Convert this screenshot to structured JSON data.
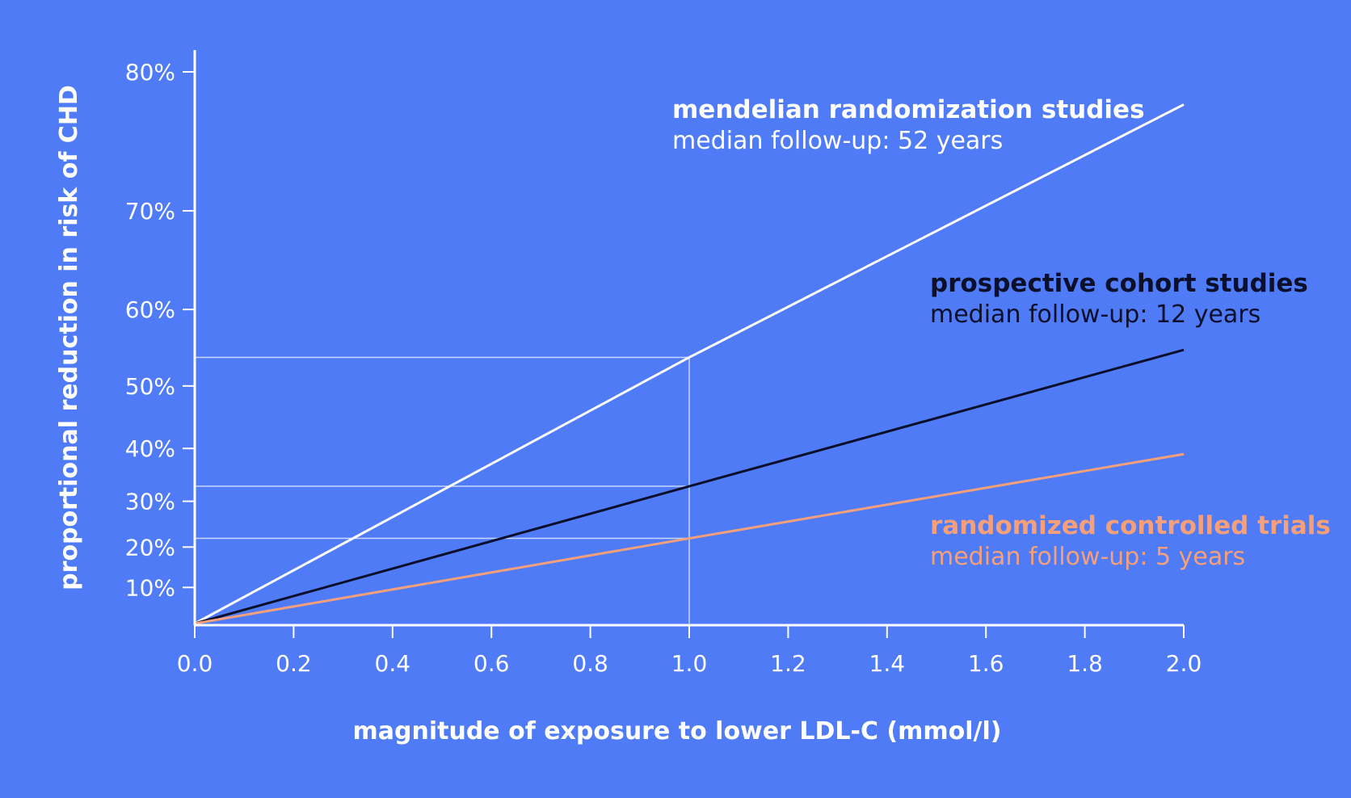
{
  "chart_data": {
    "type": "line",
    "title": "",
    "xlabel": "magnitude of exposure to lower LDL-C (mmol/l)",
    "ylabel": "proportional reduction in risk of CHD",
    "xlim": [
      0,
      2
    ],
    "y_scale": "log-risk (proportional reduction axis, non-linear)",
    "x_ticks": [
      "0.0",
      "0.2",
      "0.4",
      "0.6",
      "0.8",
      "1.0",
      "1.2",
      "1.4",
      "1.6",
      "1.8",
      "2.0"
    ],
    "y_ticks": [
      "10%",
      "20%",
      "30%",
      "40%",
      "50%",
      "60%",
      "70%",
      "80%"
    ],
    "grid": false,
    "reference_lines": {
      "x": 1.0,
      "y": [
        22,
        33,
        54
      ]
    },
    "series": [
      {
        "name": "mendelian randomization studies",
        "subtitle": "median follow-up: 52 years",
        "color": "#ffffff",
        "x": [
          0,
          1.0,
          2.0
        ],
        "y": [
          0,
          54,
          78
        ]
      },
      {
        "name": "prospective cohort studies",
        "subtitle": "median follow-up: 12 years",
        "color": "#0b0f2a",
        "x": [
          0,
          1.0,
          2.0
        ],
        "y": [
          0,
          33,
          55
        ]
      },
      {
        "name": "randomized controlled trials",
        "subtitle": "median follow-up: 5 years",
        "color": "#f5a07a",
        "x": [
          0,
          1.0,
          2.0
        ],
        "y": [
          0,
          22,
          39
        ]
      }
    ]
  }
}
